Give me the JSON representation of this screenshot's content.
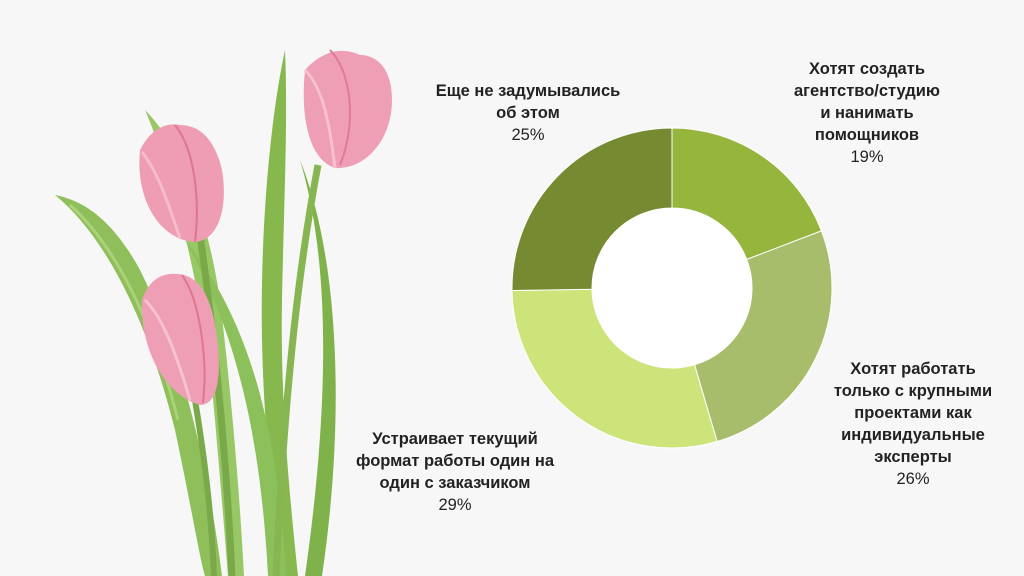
{
  "chart_data": {
    "type": "pie",
    "donut": true,
    "title": "",
    "slices": [
      {
        "label": "Хотят создать\nагентство/студию\nи нанимать\nпомощников",
        "value": 19,
        "value_label": "19%",
        "color": "#95b53d"
      },
      {
        "label": "Хотят работать\nтолько с крупными\nпроектами как\nиндивидуальные\nэксперты",
        "value": 26,
        "value_label": "26%",
        "color": "#a8bd6c"
      },
      {
        "label": "Устраивает текущий\nформат работы один на\nодин с заказчиком",
        "value": 29,
        "value_label": "29%",
        "color": "#cde47a"
      },
      {
        "label": "Еще не задумывались\nоб этом",
        "value": 25,
        "value_label": "25%",
        "color": "#768a31"
      }
    ]
  }
}
